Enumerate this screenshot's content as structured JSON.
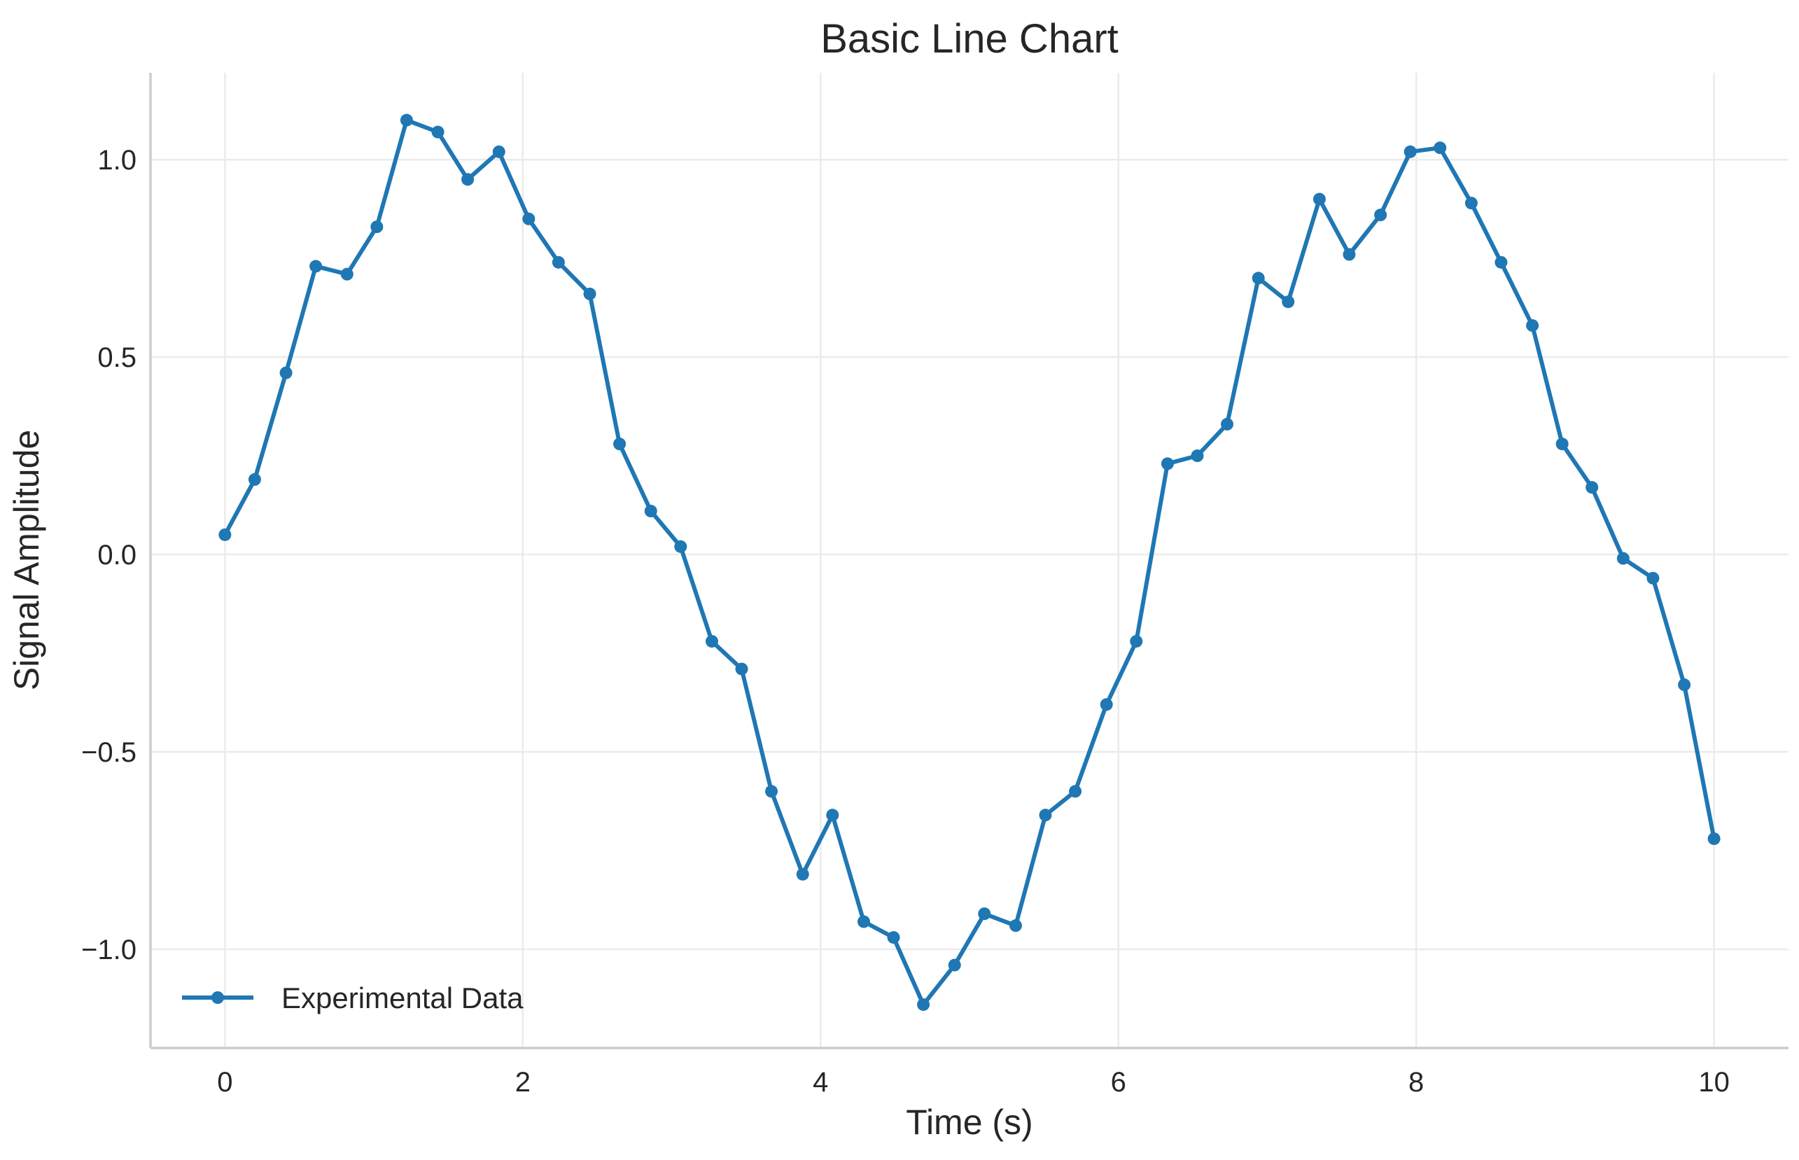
{
  "chart_data": {
    "type": "line",
    "title": "Basic Line Chart",
    "xlabel": "Time (s)",
    "ylabel": "Signal Amplitude",
    "xlim": [
      -0.5,
      10.5
    ],
    "ylim": [
      -1.25,
      1.22
    ],
    "grid": true,
    "legend_position": "lower-left",
    "x_ticks": [
      {
        "value": 0,
        "label": "0"
      },
      {
        "value": 2,
        "label": "2"
      },
      {
        "value": 4,
        "label": "4"
      },
      {
        "value": 6,
        "label": "6"
      },
      {
        "value": 8,
        "label": "8"
      },
      {
        "value": 10,
        "label": "10"
      }
    ],
    "y_ticks": [
      {
        "value": -1.0,
        "label": "−1.0"
      },
      {
        "value": -0.5,
        "label": "−0.5"
      },
      {
        "value": 0.0,
        "label": "0.0"
      },
      {
        "value": 0.5,
        "label": "0.5"
      },
      {
        "value": 1.0,
        "label": "1.0"
      }
    ],
    "series": [
      {
        "name": "Experimental Data",
        "color": "#1f77b4",
        "marker": "circle",
        "x": [
          0.0,
          0.2,
          0.41,
          0.61,
          0.82,
          1.02,
          1.22,
          1.43,
          1.63,
          1.84,
          2.04,
          2.24,
          2.45,
          2.65,
          2.86,
          3.06,
          3.27,
          3.47,
          3.67,
          3.88,
          4.08,
          4.29,
          4.49,
          4.69,
          4.9,
          5.1,
          5.31,
          5.51,
          5.71,
          5.92,
          6.12,
          6.33,
          6.53,
          6.73,
          6.94,
          7.14,
          7.35,
          7.55,
          7.76,
          7.96,
          8.16,
          8.37,
          8.57,
          8.78,
          8.98,
          9.18,
          9.39,
          9.59,
          9.8,
          10.0
        ],
        "y": [
          0.05,
          0.19,
          0.46,
          0.73,
          0.71,
          0.83,
          1.1,
          1.07,
          0.95,
          1.02,
          0.85,
          0.74,
          0.66,
          0.28,
          0.11,
          0.02,
          -0.22,
          -0.29,
          -0.6,
          -0.81,
          -0.66,
          -0.93,
          -0.97,
          -1.14,
          -1.04,
          -0.91,
          -0.94,
          -0.66,
          -0.6,
          -0.38,
          -0.22,
          0.23,
          0.25,
          0.33,
          0.7,
          0.64,
          0.9,
          0.76,
          0.86,
          1.02,
          1.03,
          0.89,
          0.74,
          0.58,
          0.28,
          0.17,
          -0.01,
          -0.06,
          -0.33,
          -0.72
        ]
      }
    ]
  }
}
